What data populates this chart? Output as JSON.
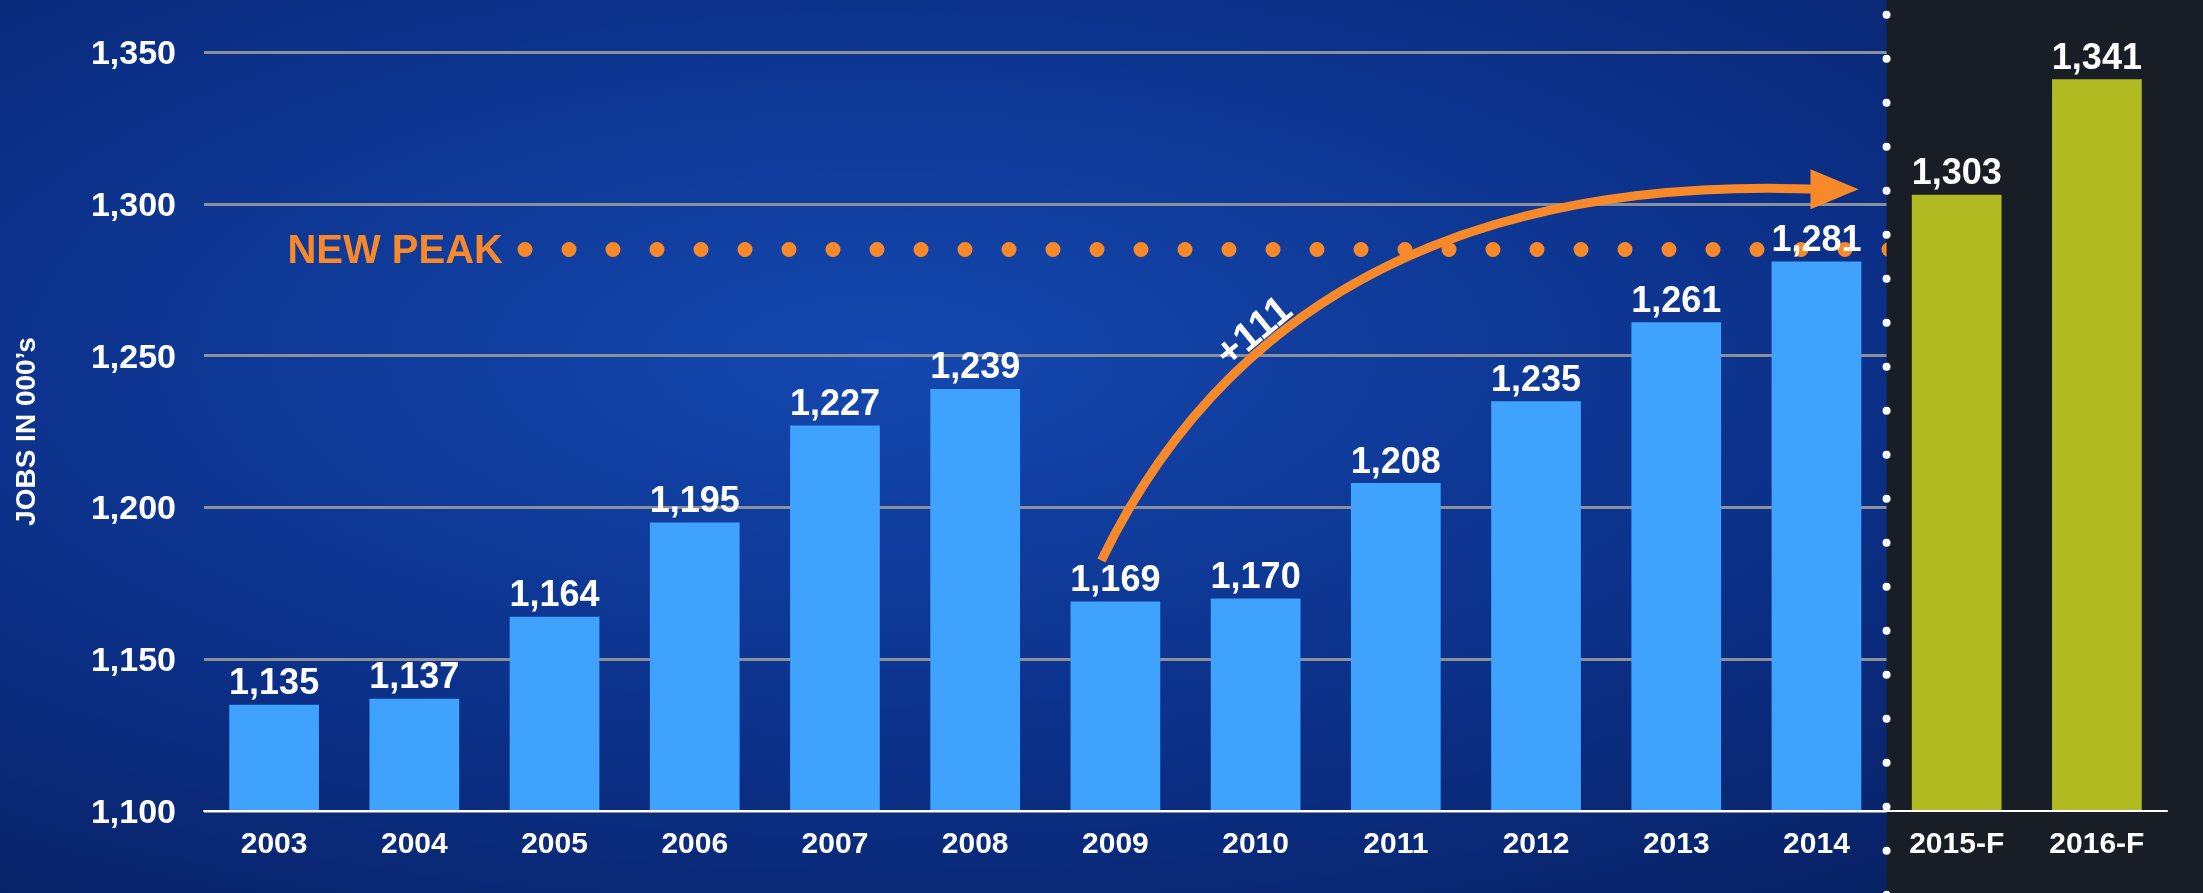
{
  "chart_data": {
    "type": "bar",
    "ylabel": "JOBS IN 000’s",
    "categories": [
      "2003",
      "2004",
      "2005",
      "2006",
      "2007",
      "2008",
      "2009",
      "2010",
      "2011",
      "2012",
      "2013",
      "2014",
      "2015-F",
      "2016-F"
    ],
    "values": [
      1135,
      1137,
      1164,
      1195,
      1227,
      1239,
      1169,
      1170,
      1208,
      1235,
      1261,
      1281,
      1303,
      1341
    ],
    "colors": [
      "#3fa2fc",
      "#3fa2fc",
      "#3fa2fc",
      "#3fa2fc",
      "#3fa2fc",
      "#3fa2fc",
      "#3fa2fc",
      "#3fa2fc",
      "#3fa2fc",
      "#3fa2fc",
      "#3fa2fc",
      "#3fa2fc",
      "#b1ba20",
      "#b1ba20"
    ],
    "ylim": [
      1100,
      1350
    ],
    "yticks": [
      {
        "value": 1100,
        "label": "1,100"
      },
      {
        "value": 1150,
        "label": "1,150"
      },
      {
        "value": 1200,
        "label": "1,200"
      },
      {
        "value": 1250,
        "label": "1,250"
      },
      {
        "value": 1300,
        "label": "1,300"
      },
      {
        "value": 1350,
        "label": "1,350"
      }
    ],
    "grid": "y",
    "value_labels": [
      "1,135",
      "1,137",
      "1,164",
      "1,195",
      "1,227",
      "1,239",
      "1,169",
      "1,170",
      "1,208",
      "1,235",
      "1,261",
      "1,281",
      "1,303",
      "1,341"
    ],
    "ref_lines": [
      {
        "axis": "y",
        "value": 1285,
        "label": "NEW PEAK",
        "color": "#f7892b",
        "line_style": "dotted"
      }
    ],
    "bands": [
      {
        "axis": "x",
        "from": "2015-F",
        "to": "2016-F",
        "color": "#191d26"
      }
    ],
    "annotations": [
      "+111"
    ]
  }
}
